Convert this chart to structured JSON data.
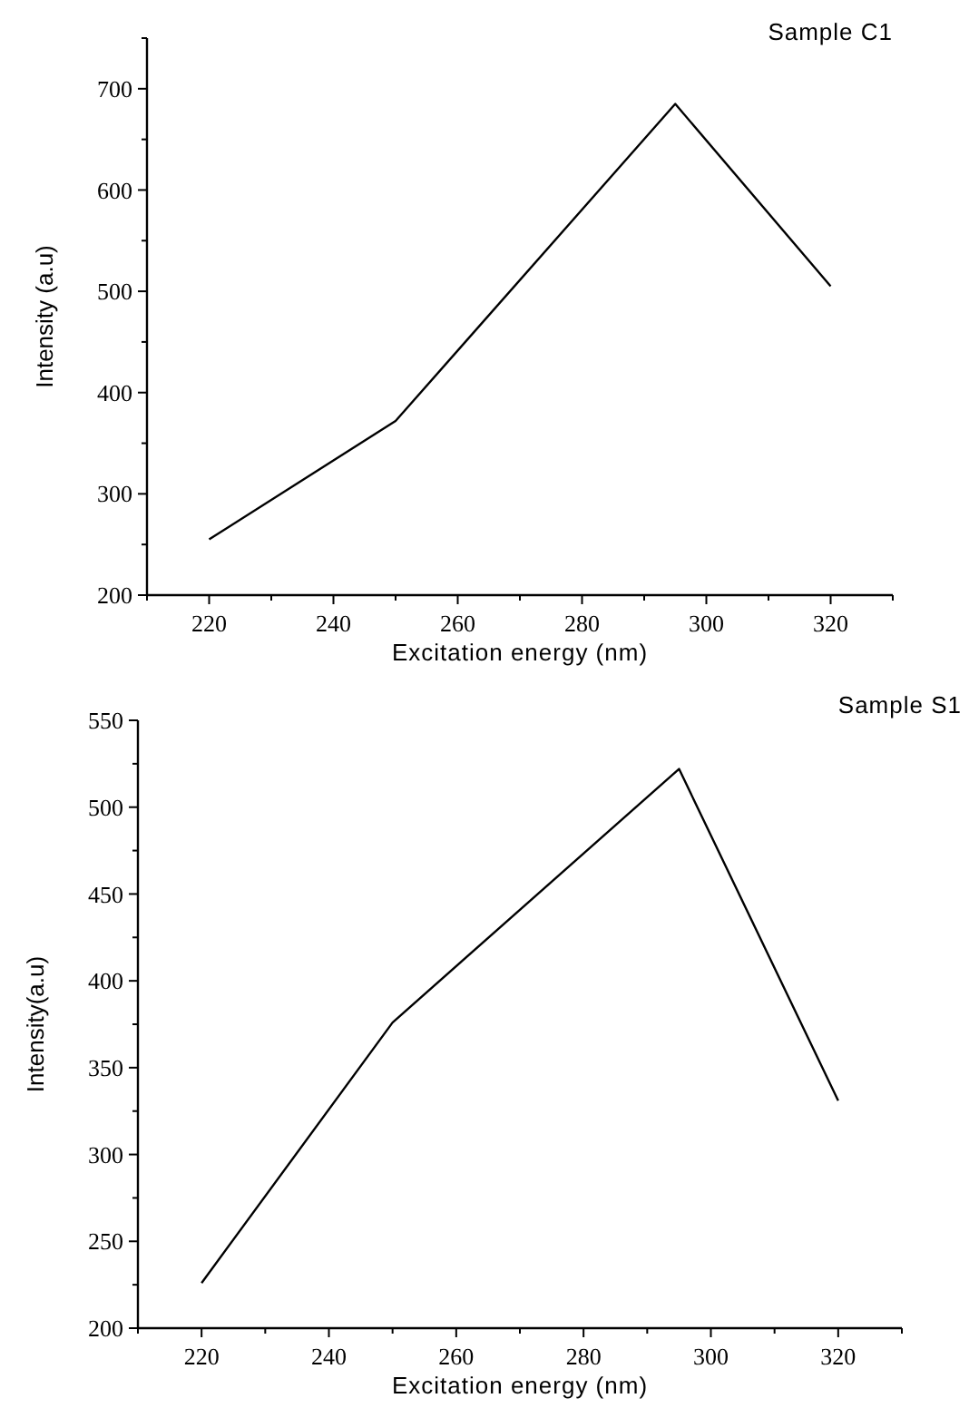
{
  "chart_data": [
    {
      "type": "line",
      "title": "Sample C1",
      "xlabel": "Excitation energy (nm)",
      "ylabel": "Intensity (a.u)",
      "x": [
        220,
        250,
        295,
        320
      ],
      "series": [
        {
          "color": "#000000",
          "values": [
            255,
            372,
            685,
            505
          ]
        }
      ],
      "xlim": [
        210,
        330
      ],
      "xticks": [
        {
          "value": 210,
          "label": null
        },
        220,
        {
          "value": 230,
          "label": null
        },
        240,
        {
          "value": 250,
          "label": null
        },
        260,
        {
          "value": 270,
          "label": null
        },
        280,
        {
          "value": 290,
          "label": null
        },
        300,
        {
          "value": 310,
          "label": null
        },
        320,
        {
          "value": 330,
          "label": null
        }
      ],
      "ylim": [
        200,
        750
      ],
      "yticks": [
        200,
        {
          "value": 250,
          "label": null
        },
        300,
        {
          "value": 350,
          "label": null
        },
        400,
        {
          "value": 450,
          "label": null
        },
        500,
        {
          "value": 550,
          "label": null
        },
        600,
        {
          "value": 650,
          "label": null
        },
        700,
        {
          "value": 750,
          "label": null
        }
      ],
      "grid": false,
      "marker": "none",
      "line_style": "solid"
    },
    {
      "type": "line",
      "title": "Sample S1",
      "xlabel": "Excitation energy (nm)",
      "ylabel": "Intensity(a.u)",
      "x": [
        220,
        250,
        295,
        320
      ],
      "series": [
        {
          "color": "#000000",
          "values": [
            226,
            376,
            522,
            331
          ]
        }
      ],
      "xlim": [
        210,
        330
      ],
      "xticks": [
        {
          "value": 210,
          "label": null
        },
        220,
        {
          "value": 230,
          "label": null
        },
        240,
        {
          "value": 250,
          "label": null
        },
        260,
        {
          "value": 270,
          "label": null
        },
        280,
        {
          "value": 290,
          "label": null
        },
        300,
        {
          "value": 310,
          "label": null
        },
        320,
        {
          "value": 330,
          "label": null
        }
      ],
      "ylim": [
        200,
        550
      ],
      "yticks": [
        200,
        {
          "value": 225,
          "label": null
        },
        250,
        {
          "value": 275,
          "label": null
        },
        300,
        {
          "value": 325,
          "label": null
        },
        350,
        {
          "value": 375,
          "label": null
        },
        400,
        {
          "value": 425,
          "label": null
        },
        450,
        {
          "value": 475,
          "label": null
        },
        500,
        {
          "value": 525,
          "label": null
        },
        550
      ],
      "grid": false,
      "marker": "none",
      "line_style": "solid"
    }
  ]
}
